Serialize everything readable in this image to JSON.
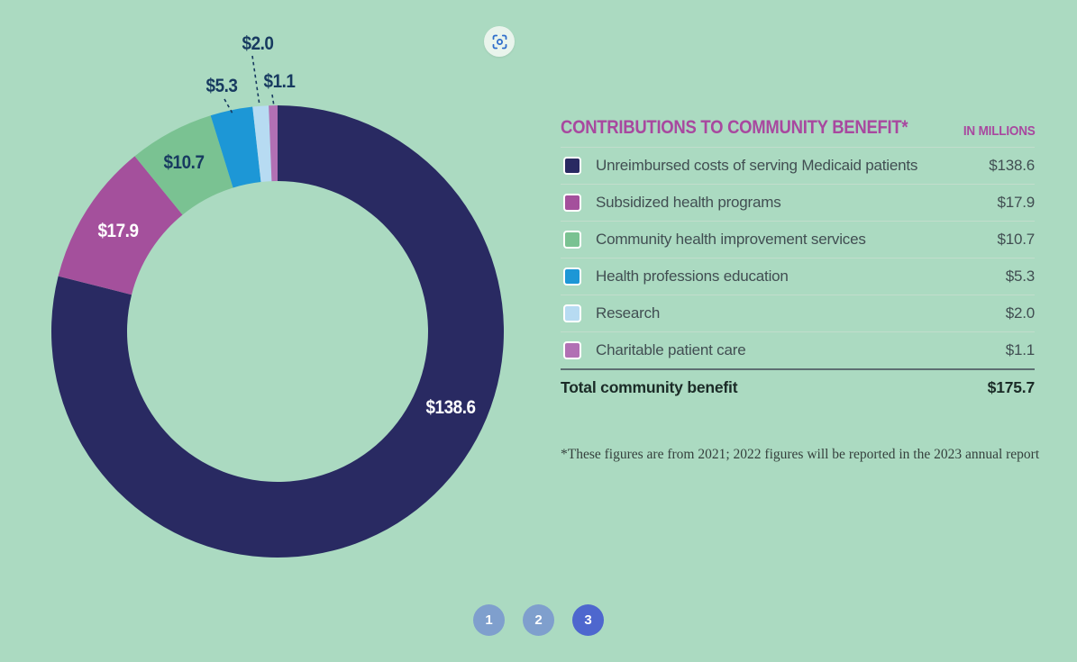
{
  "page": {
    "background_color": "#abdac1"
  },
  "chart_data": {
    "type": "pie",
    "variant": "donut",
    "title": "CONTRIBUTIONS TO COMMUNITY BENEFIT*",
    "units_label": "IN MILLIONS",
    "legend_position": "right",
    "start_angle_deg": 0,
    "direction": "clockwise",
    "total_label": "Total community benefit",
    "total_display": "$175.7",
    "total_value": 175.7,
    "segments": [
      {
        "label": "Unreimbursed costs of serving Medicaid patients",
        "value": 138.6,
        "display": "$138.6",
        "color": "#292a62"
      },
      {
        "label": "Subsidized health programs",
        "value": 17.9,
        "display": "$17.9",
        "color": "#a4509c"
      },
      {
        "label": "Community health improvement services",
        "value": 10.7,
        "display": "$10.7",
        "color": "#7ac292"
      },
      {
        "label": "Health professions education",
        "value": 5.3,
        "display": "$5.3",
        "color": "#1d97d6"
      },
      {
        "label": "Research",
        "value": 2.0,
        "display": "$2.0",
        "color": "#b7dbf2"
      },
      {
        "label": "Charitable patient care",
        "value": 1.1,
        "display": "$1.1",
        "color": "#b170b4"
      }
    ]
  },
  "header": {
    "title_color": "#a8489f"
  },
  "footnote": "*These figures are from 2021; 2022 figures will be reported in the 2023 annual report",
  "controls": {
    "scan_icon_color": "#2f6ecb"
  },
  "pagination": {
    "pages": [
      "1",
      "2",
      "3"
    ],
    "active_page": "3",
    "inactive_color": "#7f9fcd",
    "active_color": "#4e67ce"
  }
}
